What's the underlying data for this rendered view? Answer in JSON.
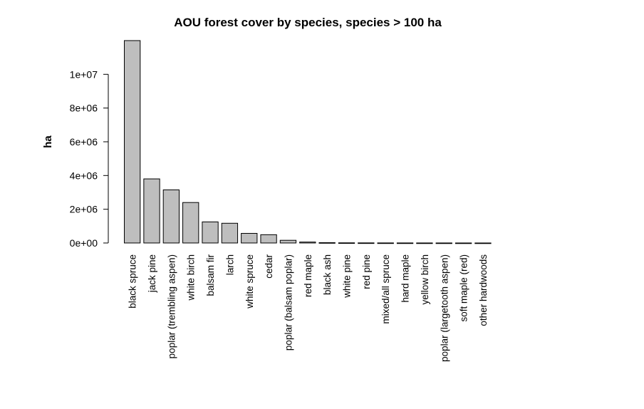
{
  "chart_data": {
    "type": "bar",
    "title": "AOU forest cover by species, species > 100 ha",
    "xlabel": "",
    "ylabel": "ha",
    "ylim": [
      0,
      12000000
    ],
    "yticks": [
      0,
      2000000,
      4000000,
      6000000,
      8000000,
      10000000
    ],
    "ytick_labels": [
      "0e+00",
      "2e+06",
      "4e+06",
      "6e+06",
      "8e+06",
      "1e+07"
    ],
    "grid": false,
    "legend": "none",
    "bar_color": "#bebebe",
    "categories": [
      "black spruce",
      "jack pine",
      "poplar (trembling aspen)",
      "white birch",
      "balsam fir",
      "larch",
      "white spruce",
      "cedar",
      "poplar (balsam poplar)",
      "red maple",
      "black ash",
      "white pine",
      "red pine",
      "mixed/all spruce",
      "hard maple",
      "yellow birch",
      "poplar (largetooth aspen)",
      "soft maple (red)",
      "other hardwoods"
    ],
    "values": [
      12000000,
      3800000,
      3150000,
      2400000,
      1250000,
      1170000,
      570000,
      490000,
      160000,
      55000,
      18000,
      9000,
      6000,
      4000,
      3000,
      2000,
      1500,
      1000,
      500
    ]
  }
}
